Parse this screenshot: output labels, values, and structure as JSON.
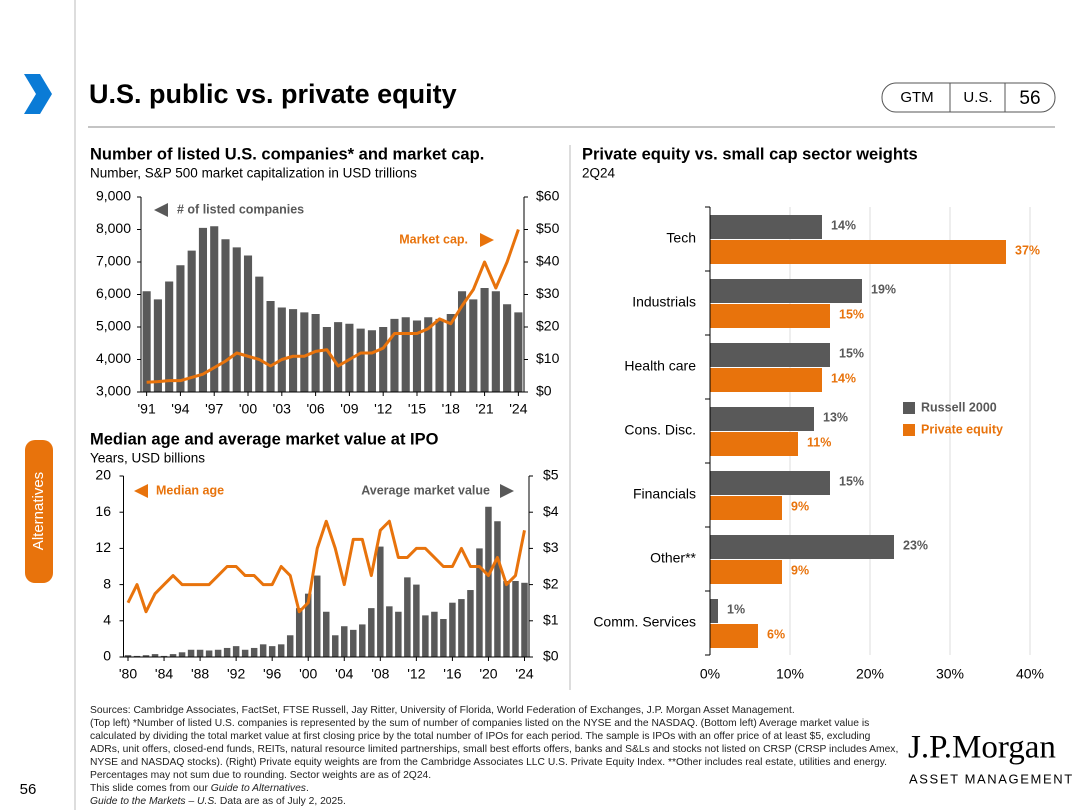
{
  "page": {
    "title": "U.S. public vs. private equity",
    "tabs": [
      "GTM",
      "U.S.",
      "56"
    ],
    "side_tab": "Alternatives",
    "page_number": "56",
    "footer": {
      "sources": "Sources: Cambridge Associates, FactSet, FTSE Russell, Jay Ritter, University of Florida, World Federation of Exchanges, J.P. Morgan Asset Management.",
      "notes": "(Top left) *Number of listed U.S. companies is represented by the sum of number of companies listed on the NYSE and the NASDAQ. (Bottom left) Average market value is calculated by dividing the total market value at first closing price by the total number of IPOs for each period. The sample is IPOs with an offer price of at least $5, excluding ADRs, unit offers, closed-end funds, REITs, natural resource limited partnerships, small best efforts offers, banks and S&Ls and stocks not listed on CRSP (CRSP includes Amex, NYSE and NASDAQ stocks). (Right) Private equity weights are from the Cambridge Associates LLC U.S. Private Equity Index. **Other includes real estate, utilities and energy. Percentages may not sum due to rounding. Sector weights are as of 2Q24.",
      "line2": [
        "This slide comes from our ",
        "Guide to Alternatives",
        "."
      ],
      "line3": [
        "Guide to the Markets – U.S.",
        " Data are as of July 2, 2025."
      ]
    },
    "logo": {
      "name": "J.P.Morgan",
      "sub": "ASSET MANAGEMENT"
    }
  },
  "chart_data": [
    {
      "type": "combo",
      "title": "Number of listed U.S. companies* and market cap.",
      "subtitle": "Number, S&P 500 market capitalization in USD trillions",
      "categories": [
        "'91",
        null,
        null,
        "'94",
        null,
        null,
        "'97",
        null,
        null,
        "'00",
        null,
        null,
        "'03",
        null,
        null,
        "'06",
        null,
        null,
        "'09",
        null,
        null,
        "'12",
        null,
        null,
        "'15",
        null,
        null,
        "'18",
        null,
        null,
        "'21",
        null,
        null,
        "'24"
      ],
      "series": [
        {
          "name": "# of listed companies",
          "color": "#595959",
          "type": "bar",
          "values": [
            6100,
            5850,
            6400,
            6900,
            7350,
            8050,
            8100,
            7700,
            7450,
            7200,
            6550,
            5800,
            5600,
            5550,
            5450,
            5400,
            5000,
            5150,
            5100,
            4950,
            4900,
            5000,
            5250,
            5300,
            5200,
            5300,
            5250,
            5400,
            6100,
            5850,
            6200,
            6100,
            5700,
            5450
          ]
        },
        {
          "name": "Market cap.",
          "color": "#e8730c",
          "type": "line",
          "axis": "y2",
          "values": [
            3,
            3.2,
            3.5,
            3.5,
            4.5,
            5.5,
            7.5,
            9.5,
            12,
            11,
            10,
            8,
            10,
            11,
            11,
            12.5,
            13,
            8,
            10,
            12,
            12,
            13.5,
            18,
            18,
            18,
            19.5,
            22.5,
            21,
            26.5,
            31.5,
            40,
            32,
            40,
            50
          ]
        }
      ],
      "ylim": [
        3000,
        9000
      ],
      "yticks": [
        {
          "value": 3000,
          "label": "3,000"
        },
        {
          "value": 4000,
          "label": "4,000"
        },
        {
          "value": 5000,
          "label": "5,000"
        },
        {
          "value": 6000,
          "label": "6,000"
        },
        {
          "value": 7000,
          "label": "7,000"
        },
        {
          "value": 8000,
          "label": "8,000"
        },
        {
          "value": 9000,
          "label": "9,000"
        }
      ],
      "y2lim": [
        0,
        60
      ],
      "y2ticks": [
        {
          "value": 0,
          "label": "$0"
        },
        {
          "value": 10,
          "label": "$10"
        },
        {
          "value": 20,
          "label": "$20"
        },
        {
          "value": 30,
          "label": "$30"
        },
        {
          "value": 40,
          "label": "$40"
        },
        {
          "value": 50,
          "label": "$50"
        },
        {
          "value": 60,
          "label": "$60"
        }
      ]
    },
    {
      "type": "combo",
      "title": "Median age and average market value at IPO",
      "subtitle": "Years, USD billions",
      "categories": [
        "'80",
        null,
        null,
        null,
        "'84",
        null,
        null,
        null,
        "'88",
        null,
        null,
        null,
        "'92",
        null,
        null,
        null,
        "'96",
        null,
        null,
        null,
        "'00",
        null,
        null,
        null,
        "'04",
        null,
        null,
        null,
        "'08",
        null,
        null,
        null,
        "'12",
        null,
        null,
        null,
        "'16",
        null,
        null,
        null,
        "'20",
        null,
        null,
        null,
        "'24"
      ],
      "series": [
        {
          "name": "Median age",
          "color": "#e8730c",
          "type": "line",
          "values": [
            6,
            8,
            5,
            7,
            8,
            9,
            8,
            8,
            8,
            8,
            9,
            10,
            10,
            9,
            9,
            8,
            8,
            10,
            9,
            5,
            6,
            12,
            15,
            12,
            8,
            13,
            13,
            9,
            14,
            15,
            11,
            11,
            12,
            12,
            11,
            10,
            10,
            12,
            10,
            10,
            9,
            11,
            8,
            9,
            14
          ]
        },
        {
          "name": "Average market value",
          "color": "#595959",
          "type": "bar",
          "axis": "y2",
          "values": [
            0.05,
            0.03,
            0.05,
            0.08,
            0.03,
            0.08,
            0.13,
            0.2,
            0.2,
            0.18,
            0.2,
            0.25,
            0.3,
            0.2,
            0.25,
            0.35,
            0.3,
            0.35,
            0.6,
            1.35,
            1.75,
            2.25,
            1.25,
            0.6,
            0.85,
            0.75,
            0.9,
            1.35,
            3.05,
            1.4,
            1.25,
            2.2,
            2,
            1.15,
            1.25,
            1.05,
            1.5,
            1.6,
            1.85,
            3,
            4.15,
            3.75,
            2.1,
            2.1,
            2.05
          ]
        }
      ],
      "ylim": [
        0,
        20
      ],
      "yticks": [
        0,
        4,
        8,
        12,
        16,
        20
      ],
      "y2lim": [
        0,
        5
      ],
      "y2ticks": [
        {
          "value": 0,
          "label": "$0"
        },
        {
          "value": 1,
          "label": "$1"
        },
        {
          "value": 2,
          "label": "$2"
        },
        {
          "value": 3,
          "label": "$3"
        },
        {
          "value": 4,
          "label": "$4"
        },
        {
          "value": 5,
          "label": "$5"
        }
      ]
    },
    {
      "type": "barh",
      "title": "Private equity vs. small cap sector weights",
      "subtitle": "2Q24",
      "categories": [
        "Tech",
        "Industrials",
        "Health care",
        "Cons. Disc.",
        "Financials",
        "Other**",
        "Comm. Services"
      ],
      "series": [
        {
          "name": "Russell 2000",
          "color": "#595959",
          "values": [
            14,
            19,
            15,
            13,
            15,
            23,
            1
          ],
          "value_labels": [
            "14%",
            "19%",
            "15%",
            "13%",
            "15%",
            "23%",
            "1%"
          ]
        },
        {
          "name": "Private equity",
          "color": "#e8730c",
          "values": [
            37,
            15,
            14,
            11,
            9,
            9,
            6
          ],
          "value_labels": [
            "37%",
            "15%",
            "14%",
            "11%",
            "9%",
            "9%",
            "6%"
          ]
        }
      ],
      "xlim": [
        0,
        40
      ],
      "xticks": [
        {
          "value": 0,
          "label": "0%"
        },
        {
          "value": 10,
          "label": "10%"
        },
        {
          "value": 20,
          "label": "20%"
        },
        {
          "value": 30,
          "label": "30%"
        },
        {
          "value": 40,
          "label": "40%"
        }
      ],
      "grid": true
    }
  ]
}
